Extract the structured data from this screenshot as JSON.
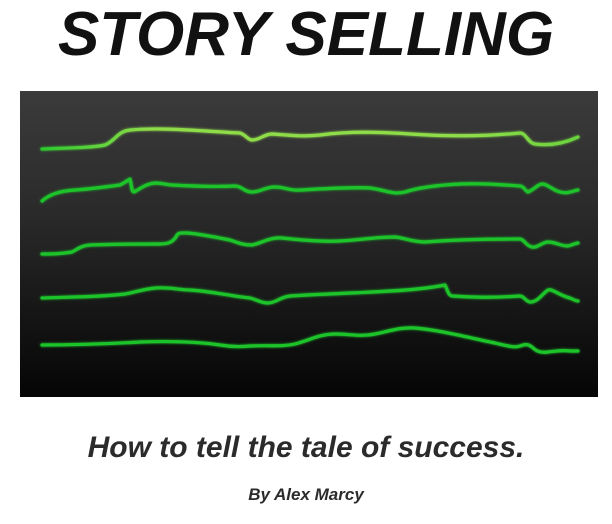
{
  "title": "STORY SELLING",
  "subtitle": "How to tell the tale of success.",
  "byline": "By Alex Marcy",
  "colors": {
    "background": "#ffffff",
    "panel_top": "#3b3b3b",
    "panel_bottom": "#050505",
    "stroke_light": "#8fdc4a",
    "stroke": "#1fc42a",
    "text": "#111111"
  }
}
